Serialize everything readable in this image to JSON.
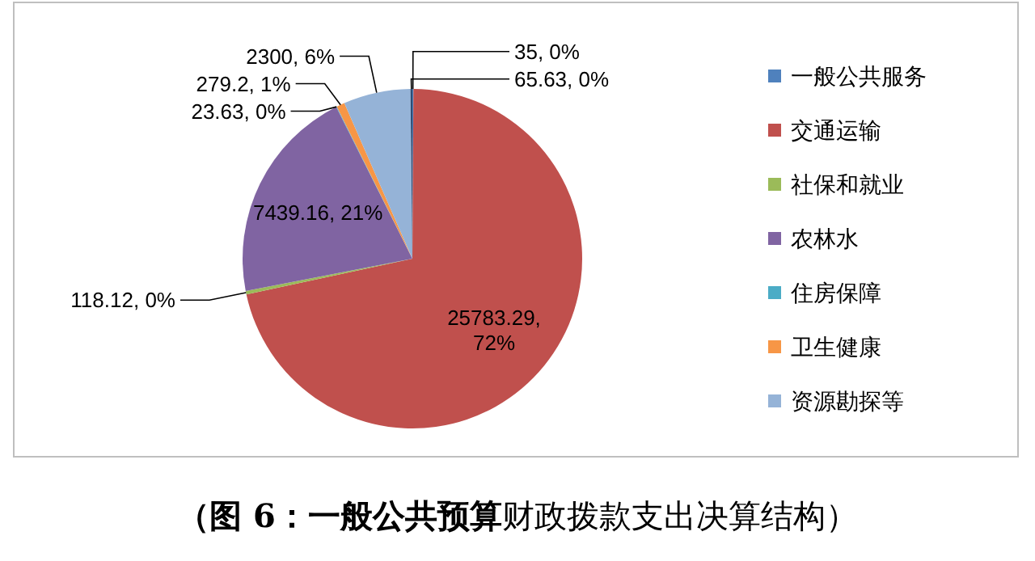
{
  "chart_data": {
    "type": "pie",
    "categories": [
      "一般公共服务",
      "交通运输",
      "社保和就业",
      "农林水",
      "住房保障",
      "卫生健康",
      "资源勘探等",
      null
    ],
    "values": [
      35,
      25783.29,
      118.12,
      7439.16,
      23.63,
      279.2,
      2300,
      65.63
    ],
    "colors": [
      "#4f81bd",
      "#c0504d",
      "#9bbb59",
      "#8064a2",
      "#4bacc6",
      "#f79646",
      "#95b3d7",
      "#2c4d75"
    ],
    "value_labels": [
      "35, 0%",
      "25783.29, 72%",
      "118.12, 0%",
      "7439.16, 21%",
      "23.63, 0%",
      "279.2, 1%",
      "2300, 6%",
      "65.63, 0%"
    ],
    "legend": "right",
    "annotations": [
      "**（图 6：一般公共预算**财政拨款支出决算结构）"
    ]
  }
}
